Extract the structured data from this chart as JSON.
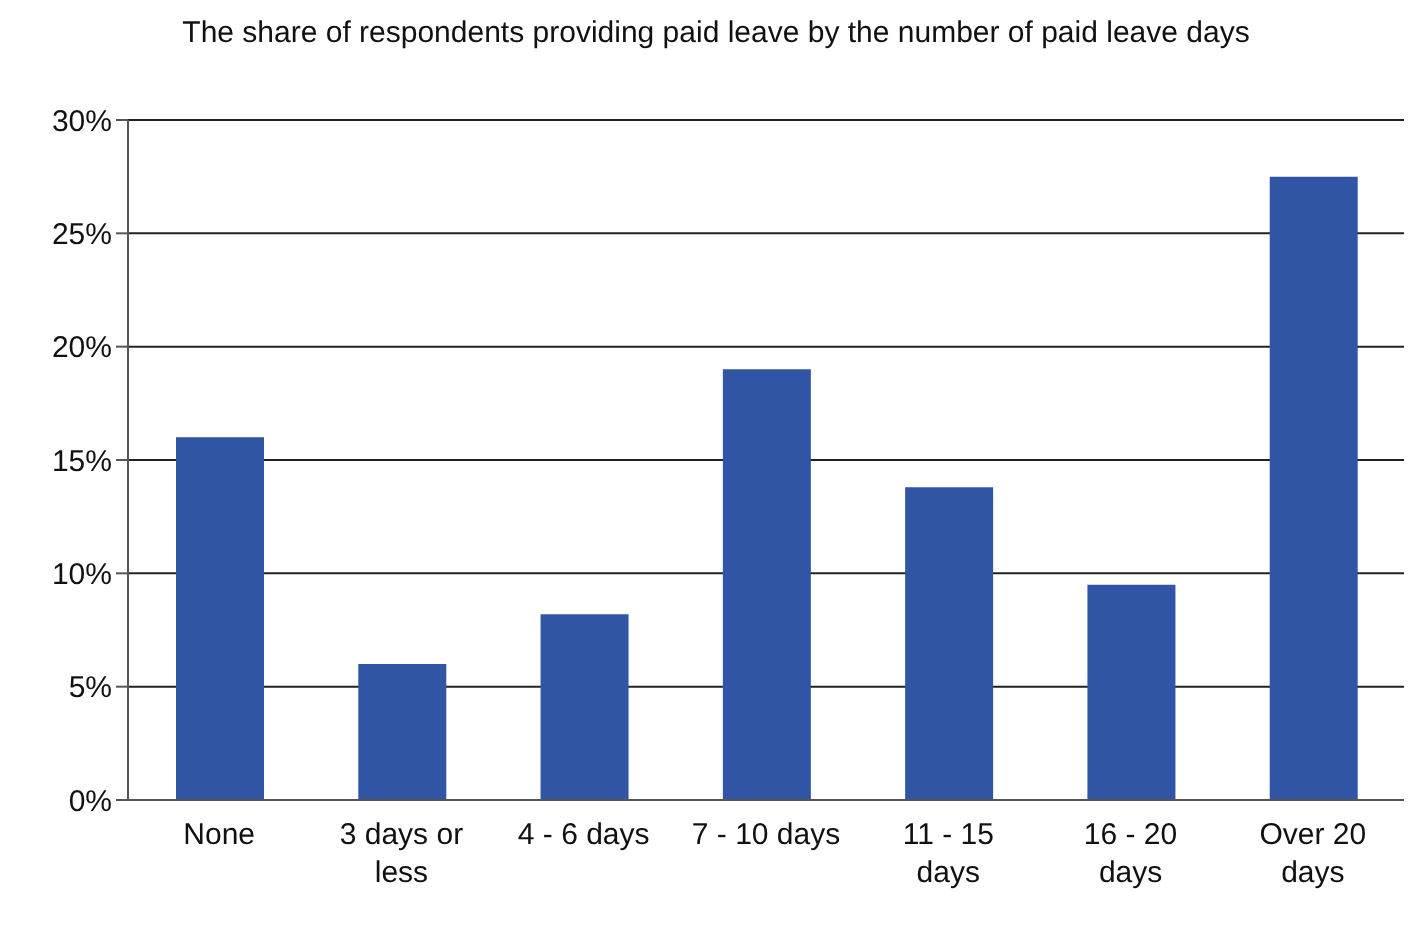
{
  "chart_data": {
    "type": "bar",
    "title": "The share of respondents providing paid leave by the number of paid leave days",
    "categories": [
      "None",
      "3 days or less",
      "4 - 6 days",
      "7 - 10 days",
      "11 - 15 days",
      "16 - 20 days",
      "Over 20 days"
    ],
    "values": [
      16,
      6,
      8.2,
      19,
      13.8,
      9.5,
      27.5
    ],
    "color": "#2f55a4",
    "ylim": [
      0,
      30
    ],
    "yticks": [
      {
        "value": 0,
        "label": "0%"
      },
      {
        "value": 5,
        "label": "5%"
      },
      {
        "value": 10,
        "label": "10%"
      },
      {
        "value": 15,
        "label": "15%"
      },
      {
        "value": 20,
        "label": "20%"
      },
      {
        "value": 25,
        "label": "25%"
      },
      {
        "value": 30,
        "label": "30%"
      }
    ],
    "grid": "y"
  }
}
